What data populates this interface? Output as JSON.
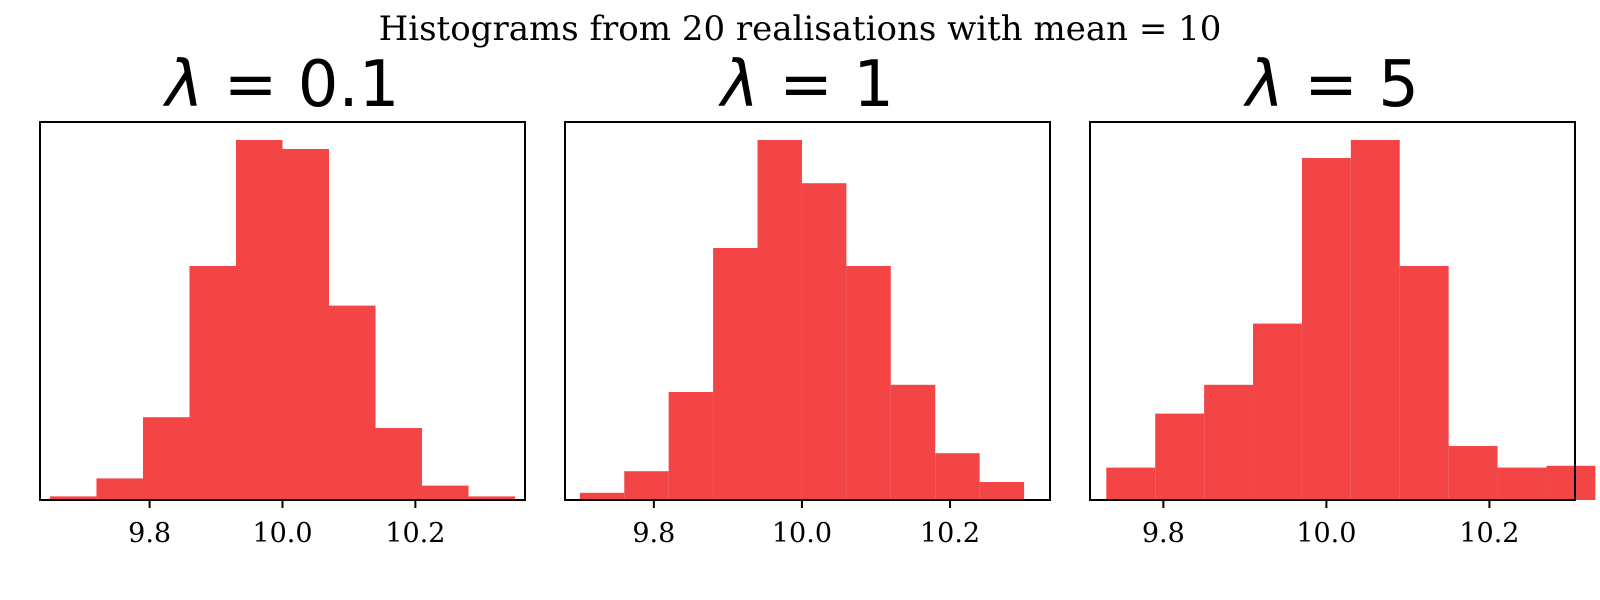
{
  "suptitle": "Histograms from 20 realisations with mean = 10",
  "colors": {
    "bar": "#f44546",
    "axes": "#000000",
    "background": "#ffffff"
  },
  "chart_data": [
    {
      "type": "bar",
      "title_symbol": "λ",
      "title_value": "0.1",
      "xticks": [
        "9.8",
        "10.0",
        "10.2"
      ],
      "xtick_values": [
        9.8,
        10.0,
        10.2
      ],
      "xlim": [
        9.635,
        10.365
      ],
      "ylim": [
        0,
        1.05
      ],
      "grid": false,
      "yticks_visible": false,
      "bin_edges": [
        9.65,
        9.72,
        9.79,
        9.86,
        9.93,
        10.0,
        10.07,
        10.14,
        10.21,
        10.28,
        10.35
      ],
      "values": [
        0.01,
        0.06,
        0.23,
        0.65,
        1.0,
        0.975,
        0.54,
        0.2,
        0.04,
        0.01
      ]
    },
    {
      "type": "bar",
      "title_symbol": "λ",
      "title_value": "1",
      "xticks": [
        "9.8",
        "10.0",
        "10.2"
      ],
      "xtick_values": [
        9.8,
        10.0,
        10.2
      ],
      "xlim": [
        9.68,
        10.335
      ],
      "ylim": [
        0,
        1.05
      ],
      "grid": false,
      "yticks_visible": false,
      "bin_edges": [
        9.7,
        9.76,
        9.82,
        9.88,
        9.94,
        10.0,
        10.06,
        10.12,
        10.18,
        10.24,
        10.3
      ],
      "values": [
        0.02,
        0.08,
        0.3,
        0.7,
        1.0,
        0.88,
        0.65,
        0.32,
        0.13,
        0.05
      ]
    },
    {
      "type": "bar",
      "title_symbol": "λ",
      "title_value": "5",
      "xticks": [
        "9.8",
        "10.0",
        "10.2"
      ],
      "xtick_values": [
        9.8,
        10.0,
        10.2
      ],
      "xlim": [
        9.71,
        10.305
      ],
      "ylim": [
        0,
        1.05
      ],
      "grid": false,
      "yticks_visible": false,
      "bin_edges": [
        9.73,
        9.79,
        9.85,
        9.91,
        9.97,
        10.03,
        10.09,
        10.15,
        10.21,
        10.27,
        10.33
      ],
      "values": [
        0.09,
        0.24,
        0.32,
        0.49,
        0.95,
        1.0,
        0.65,
        0.15,
        0.09,
        0.095
      ]
    }
  ]
}
